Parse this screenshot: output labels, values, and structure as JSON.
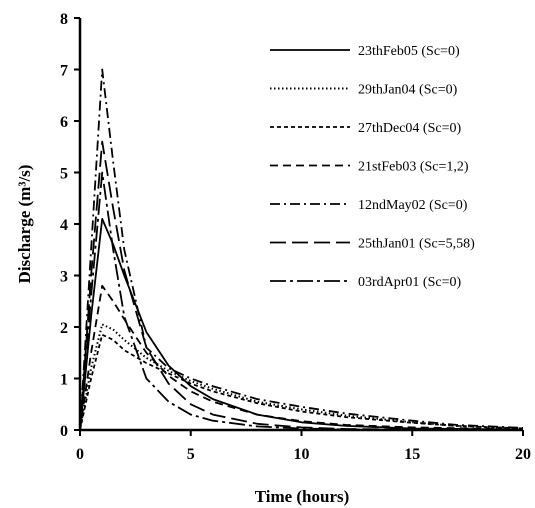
{
  "chart_data": {
    "type": "line",
    "title": "",
    "xlabel": "Time (hours)",
    "ylabel": "Discharge (m³/s)",
    "xlim": [
      0,
      20
    ],
    "ylim": [
      0,
      8
    ],
    "x_ticks": [
      "0",
      "5",
      "10",
      "15",
      "20"
    ],
    "y_ticks": [
      "0",
      "1",
      "2",
      "3",
      "4",
      "5",
      "6",
      "7",
      "8"
    ],
    "grid": false,
    "legend_position": "top-right",
    "series": [
      {
        "name": "23thFeb05 (Sc=0)",
        "style": "solid",
        "x": [
          0,
          0.5,
          1,
          1.5,
          2,
          3,
          4,
          5,
          6,
          8,
          10,
          12,
          15,
          20
        ],
        "y": [
          0,
          2.2,
          4.1,
          3.6,
          3.0,
          1.9,
          1.25,
          0.85,
          0.6,
          0.3,
          0.15,
          0.08,
          0.03,
          0.01
        ]
      },
      {
        "name": "29thJan04 (Sc=0)",
        "style": "dotted",
        "x": [
          0,
          0.5,
          1,
          1.5,
          2,
          3,
          4,
          5,
          6,
          8,
          10,
          12,
          15,
          17,
          20
        ],
        "y": [
          0,
          1.2,
          2.05,
          1.95,
          1.75,
          1.4,
          1.15,
          0.95,
          0.8,
          0.55,
          0.4,
          0.28,
          0.15,
          0.08,
          0.03
        ]
      },
      {
        "name": "27thDec04 (Sc=0)",
        "style": "short-dash",
        "x": [
          0,
          0.5,
          1,
          1.5,
          2,
          3,
          4,
          5,
          6,
          8,
          10,
          12,
          15,
          17,
          20
        ],
        "y": [
          0,
          1.0,
          1.85,
          1.75,
          1.55,
          1.3,
          1.1,
          0.9,
          0.75,
          0.52,
          0.36,
          0.25,
          0.14,
          0.08,
          0.03
        ]
      },
      {
        "name": "21stFeb03 (Sc=1,2)",
        "style": "dash",
        "x": [
          0,
          0.5,
          1,
          1.5,
          2,
          3,
          4,
          5,
          6,
          8,
          10,
          12,
          15,
          20
        ],
        "y": [
          0,
          1.5,
          2.8,
          2.5,
          2.15,
          1.5,
          1.05,
          0.75,
          0.55,
          0.3,
          0.17,
          0.1,
          0.05,
          0.01
        ]
      },
      {
        "name": "12ndMay02 (Sc=0)",
        "style": "dash-dot",
        "x": [
          0,
          0.5,
          1,
          1.5,
          2,
          3,
          4,
          5,
          6,
          8,
          10,
          12,
          15,
          17,
          20
        ],
        "y": [
          0,
          3.5,
          7.0,
          5.2,
          3.5,
          1.6,
          1.2,
          1.0,
          0.85,
          0.6,
          0.45,
          0.32,
          0.18,
          0.1,
          0.04
        ]
      },
      {
        "name": "25thJan01 (Sc=5,58)",
        "style": "long-dash",
        "x": [
          0,
          0.5,
          1,
          1.5,
          2,
          3,
          4,
          5,
          6,
          8,
          10,
          12,
          15,
          20
        ],
        "y": [
          0,
          3.0,
          5.6,
          4.3,
          3.1,
          1.6,
          0.9,
          0.5,
          0.3,
          0.12,
          0.05,
          0.02,
          0.01,
          0
        ]
      },
      {
        "name": "03rdApr01 (Sc=0)",
        "style": "long-dash-dot",
        "x": [
          0,
          0.5,
          1,
          1.5,
          2,
          3,
          4,
          5,
          6,
          8,
          10,
          12,
          15,
          20
        ],
        "y": [
          0,
          2.6,
          5.0,
          3.5,
          2.2,
          1.0,
          0.55,
          0.3,
          0.18,
          0.07,
          0.03,
          0.01,
          0,
          0
        ]
      }
    ]
  }
}
